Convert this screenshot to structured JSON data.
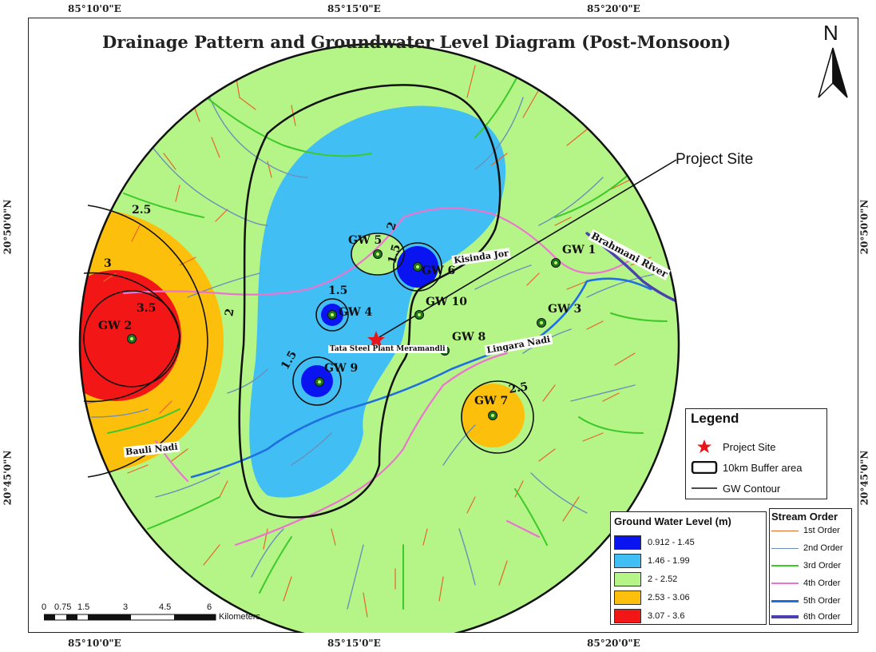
{
  "title": "Drainage Pattern and Groundwater Level Diagram (Post-Monsoon)",
  "north_arrow": {
    "letter": "N",
    "icon": "north-arrow-icon"
  },
  "coordinates": {
    "top": [
      "85°10'0\"E",
      "85°15'0\"E",
      "85°20'0\"E"
    ],
    "bottom": [
      "85°10'0\"E",
      "85°15'0\"E",
      "85°20'0\"E"
    ],
    "left": [
      "20°50'0\"N",
      "20°45'0\"N"
    ],
    "right": [
      "20°50'0\"N",
      "20°45'0\"N"
    ]
  },
  "wells": [
    {
      "label": "GW 1"
    },
    {
      "label": "GW 2"
    },
    {
      "label": "GW 3"
    },
    {
      "label": "GW 4"
    },
    {
      "label": "GW 5"
    },
    {
      "label": "GW 6"
    },
    {
      "label": "GW 7"
    },
    {
      "label": "GW 8"
    },
    {
      "label": "GW 9"
    },
    {
      "label": "GW 10"
    }
  ],
  "contour_labels": [
    "2.5",
    "3",
    "3.5",
    "2",
    "1.5",
    "2",
    "1.5",
    "1.5",
    "2.5"
  ],
  "rivers": {
    "brahmani": "Brahmani River",
    "kisinda": "Kisinda Jor",
    "lingara": "Lingara Nadi",
    "bauli": "Bauli Nadi"
  },
  "plant_label": "Tata Steel Plant Meramandli",
  "project_site_callout": "Project Site",
  "legend": {
    "title": "Legend",
    "items": [
      "Project Site",
      "10km Buffer area",
      "GW Contour"
    ],
    "colors": {
      "project_site": "#e8161a"
    }
  },
  "groundwater_legend": {
    "title": "Ground Water Level (m)",
    "classes": [
      {
        "label": "0.912 - 1.45",
        "color": "#0a14f0"
      },
      {
        "label": "1.46 - 1.99",
        "color": "#41bff5"
      },
      {
        "label": "2 - 2.52",
        "color": "#b5f587"
      },
      {
        "label": "2.53 - 3.06",
        "color": "#fcbf0c"
      },
      {
        "label": "3.07 - 3.6",
        "color": "#f21616"
      }
    ]
  },
  "stream_legend": {
    "title": "Stream Order",
    "items": [
      {
        "label": "1st Order",
        "color": "#e4672a"
      },
      {
        "label": "2nd Order",
        "color": "#6b8fb8"
      },
      {
        "label": "3rd Order",
        "color": "#3cc92a"
      },
      {
        "label": "4th Order",
        "color": "#ec74d0"
      },
      {
        "label": "5th Order",
        "color": "#1f6fe0"
      },
      {
        "label": "6th Order",
        "color": "#4a40b0"
      }
    ]
  },
  "scale_bar": {
    "ticks": [
      "0",
      "0.75",
      "1.5",
      "3",
      "4.5",
      "6"
    ],
    "unit": "Kilometers"
  }
}
